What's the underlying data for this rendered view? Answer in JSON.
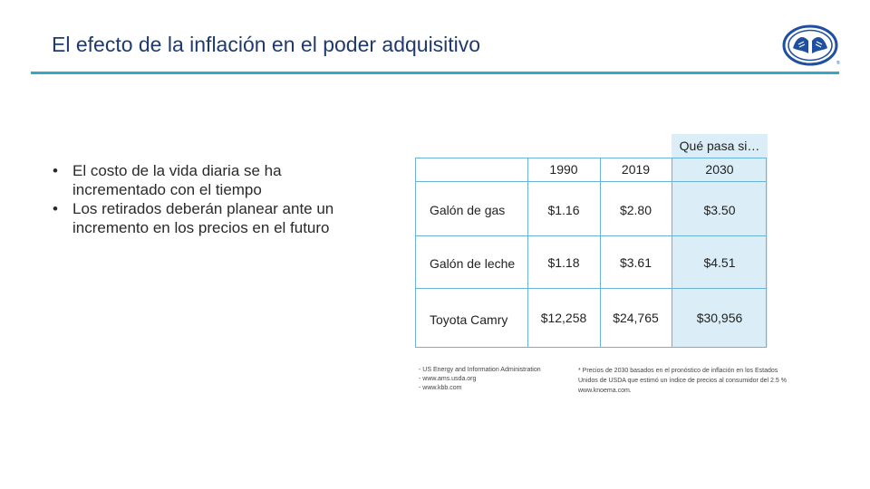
{
  "slide": {
    "title": "El efecto de la inflación en el poder adquisitivo",
    "accent_color": "#33a8c4",
    "title_color": "#1f3a6e",
    "logo_icon": "allstate-hands-logo-icon"
  },
  "bullets": [
    "El costo de la vida diaria se ha incrementado con el tiempo",
    "Los retirados deberán planear ante un incremento en los precios en el futuro"
  ],
  "table": {
    "what_if_label": "Qué pasa si…",
    "headers": [
      "",
      "1990",
      "2019",
      "2030"
    ],
    "rows": [
      {
        "item": "Galón de gas",
        "y1990": "$1.16",
        "y2019": "$2.80",
        "y2030": "$3.50"
      },
      {
        "item": "Galón de leche",
        "y1990": "$1.18",
        "y2019": "$3.61",
        "y2030": "$4.51"
      },
      {
        "item": "Toyota Camry",
        "y1990": "$12,258",
        "y2019": "$24,765",
        "y2030": "$30,956"
      }
    ],
    "highlight_color": "#dbeef7"
  },
  "sources": {
    "lines": [
      "- US Energy and Information Administration",
      "- www.ams.usda.org",
      "- www.kbb.com"
    ],
    "footnote": "* Precios de 2030 basados en el pronóstico de inflación en los Estados Unidos de USDA que estimó un índice de precios al consumidor del 2.5 % www.knoema.com."
  }
}
